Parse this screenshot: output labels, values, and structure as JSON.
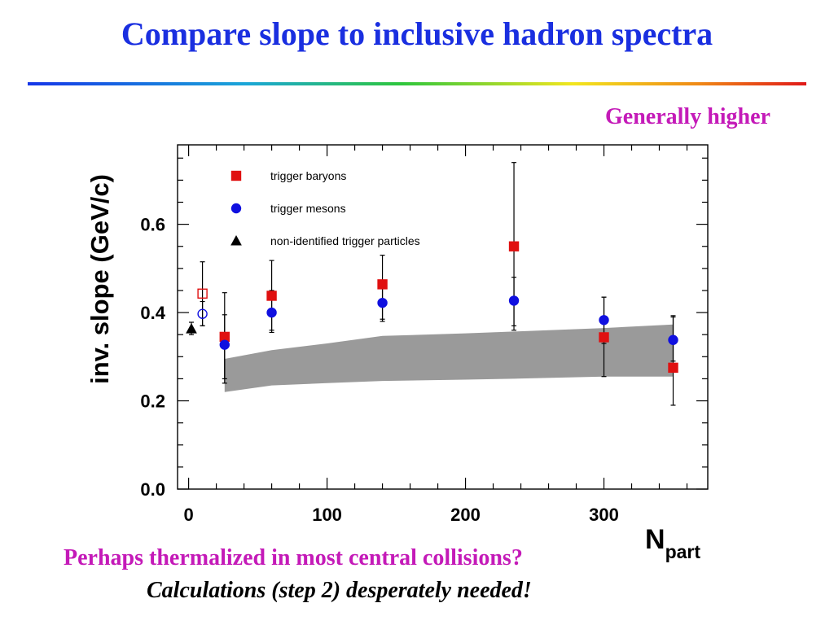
{
  "slide": {
    "title": "Compare slope to inclusive hadron spectra",
    "callout": "Generally higher",
    "note_line1": "Perhaps thermalized in most central collisions?",
    "note_line2": "Calculations (step 2) desperately needed!"
  },
  "colors": {
    "title": "#1a2fe0",
    "magenta_text": "#c41ab8",
    "baryon": "#e01010",
    "meson": "#1010e0",
    "band": "#9a9a9a"
  },
  "chart_data": {
    "type": "scatter",
    "xlabel_main": "N",
    "xlabel_sub": "part",
    "ylabel": "inv. slope (GeV/c)",
    "xlim": [
      -8,
      375
    ],
    "ylim": [
      0,
      0.78
    ],
    "x_ticks": [
      0,
      100,
      200,
      300
    ],
    "y_ticks": [
      0.0,
      0.2,
      0.4,
      0.6
    ],
    "x_tick_labels": [
      "0",
      "100",
      "200",
      "300"
    ],
    "y_tick_labels": [
      "0.0",
      "0.2",
      "0.4",
      "0.6"
    ],
    "legend_position": "top-left",
    "series": [
      {
        "name": "trigger baryons",
        "marker": "square",
        "color": "#e01010",
        "points": [
          {
            "x": 26,
            "y": 0.345,
            "lo": 0.25,
            "hi": 0.445
          },
          {
            "x": 60,
            "y": 0.438,
            "lo": 0.36,
            "hi": 0.518
          },
          {
            "x": 140,
            "y": 0.464,
            "lo": 0.385,
            "hi": 0.53
          },
          {
            "x": 235,
            "y": 0.55,
            "lo": 0.36,
            "hi": 0.74
          },
          {
            "x": 300,
            "y": 0.344,
            "lo": 0.255,
            "hi": 0.435
          },
          {
            "x": 350,
            "y": 0.275,
            "lo": 0.19,
            "hi": 0.393
          }
        ],
        "open_point": {
          "x": 10,
          "y": 0.443,
          "lo": 0.37,
          "hi": 0.515
        }
      },
      {
        "name": "trigger mesons",
        "marker": "circle",
        "color": "#1010e0",
        "points": [
          {
            "x": 26,
            "y": 0.327,
            "lo": 0.24,
            "hi": 0.395
          },
          {
            "x": 60,
            "y": 0.4,
            "lo": 0.355,
            "hi": 0.45
          },
          {
            "x": 140,
            "y": 0.422,
            "lo": 0.38,
            "hi": 0.47
          },
          {
            "x": 235,
            "y": 0.427,
            "lo": 0.37,
            "hi": 0.48
          },
          {
            "x": 300,
            "y": 0.383,
            "lo": 0.33,
            "hi": 0.435
          },
          {
            "x": 350,
            "y": 0.338,
            "lo": 0.29,
            "hi": 0.39
          }
        ],
        "open_point": {
          "x": 10,
          "y": 0.397,
          "lo": 0.37,
          "hi": 0.425
        }
      },
      {
        "name": "non-identified trigger particles",
        "marker": "triangle",
        "color": "#000000",
        "points": [
          {
            "x": 2,
            "y": 0.363,
            "lo": 0.35,
            "hi": 0.378
          }
        ]
      }
    ],
    "band": {
      "x": [
        26,
        60,
        100,
        140,
        200,
        235,
        300,
        350
      ],
      "lower": [
        0.22,
        0.235,
        0.24,
        0.245,
        0.248,
        0.25,
        0.255,
        0.255
      ],
      "upper": [
        0.295,
        0.315,
        0.33,
        0.347,
        0.353,
        0.357,
        0.365,
        0.373
      ]
    }
  }
}
